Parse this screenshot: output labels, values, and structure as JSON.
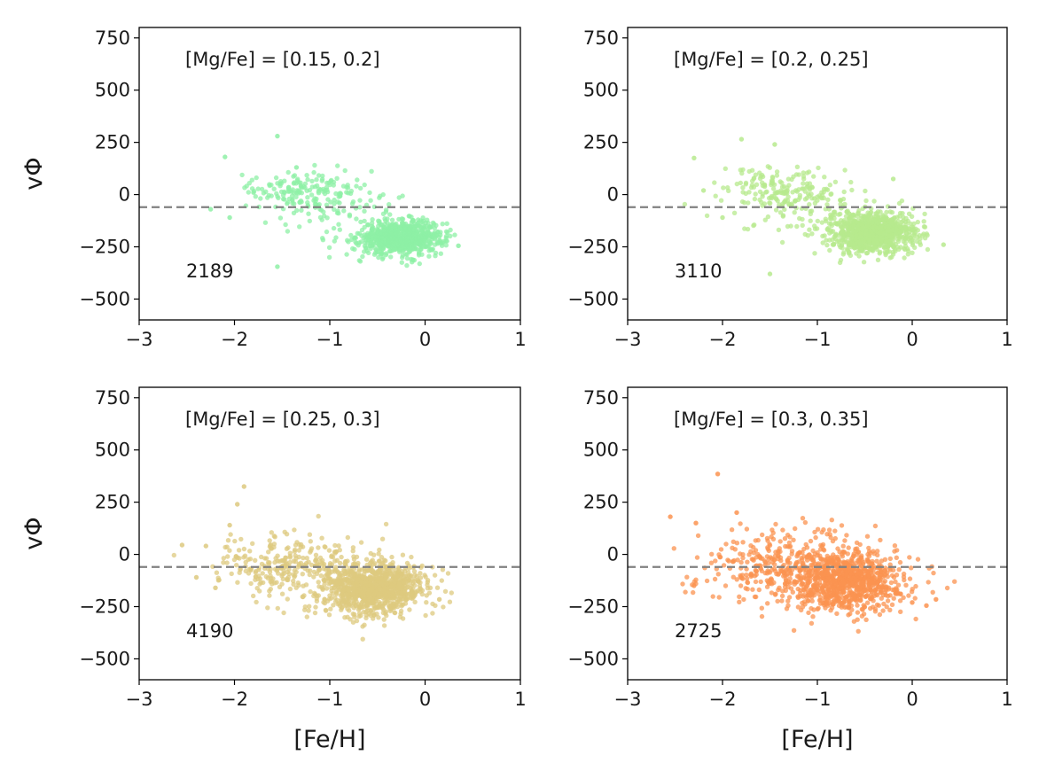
{
  "figure": {
    "xlabel": "[Fe/H]",
    "ylabel": "vΦ",
    "reference_line": {
      "y": -60,
      "style": "dashed",
      "color": "#808080"
    }
  },
  "chart_data": [
    {
      "type": "scatter",
      "title": "[Mg/Fe] = [0.15, 0.2]",
      "count_label": "2189",
      "color": "#8ef0a6",
      "xlim": [
        -3,
        1
      ],
      "ylim": [
        -600,
        800
      ],
      "xticks": [
        -3,
        -2,
        -1,
        0,
        1
      ],
      "xtick_labels": [
        "−3",
        "−2",
        "−1",
        "0",
        "1"
      ],
      "yticks": [
        750,
        500,
        250,
        0,
        -250,
        -500
      ],
      "ytick_labels": [
        "750",
        "500",
        "250",
        "0",
        "−250",
        "−500"
      ],
      "clusters": [
        {
          "cx": -0.25,
          "cy": -205,
          "sx": 0.22,
          "sy": 40,
          "n": 780
        },
        {
          "cx": -1.3,
          "cy": 20,
          "sx": 0.25,
          "sy": 45,
          "n": 130
        },
        {
          "cx": -0.9,
          "cy": -60,
          "sx": 0.35,
          "sy": 80,
          "n": 90
        }
      ],
      "points": [
        [
          -2.1,
          180
        ],
        [
          -1.55,
          280
        ],
        [
          -1.55,
          -345
        ],
        [
          -2.25,
          -70
        ],
        [
          -2.05,
          -110
        ],
        [
          0.35,
          -245
        ],
        [
          -1.8,
          10
        ],
        [
          -1.35,
          130
        ]
      ]
    },
    {
      "type": "scatter",
      "title": "[Mg/Fe] = [0.2, 0.25]",
      "count_label": "3110",
      "color": "#b7ea8e",
      "xlim": [
        -3,
        1
      ],
      "ylim": [
        -600,
        800
      ],
      "xticks": [
        -3,
        -2,
        -1,
        0,
        1
      ],
      "xtick_labels": [
        "−3",
        "−2",
        "−1",
        "0",
        "1"
      ],
      "yticks": [
        750,
        500,
        250,
        0,
        -250,
        -500
      ],
      "ytick_labels": [
        "750",
        "500",
        "250",
        "0",
        "−250",
        "−500"
      ],
      "clusters": [
        {
          "cx": -0.4,
          "cy": -185,
          "sx": 0.22,
          "sy": 48,
          "n": 850
        },
        {
          "cx": -1.45,
          "cy": 10,
          "sx": 0.28,
          "sy": 55,
          "n": 140
        },
        {
          "cx": -1.0,
          "cy": -80,
          "sx": 0.35,
          "sy": 85,
          "n": 110
        }
      ],
      "points": [
        [
          -2.3,
          175
        ],
        [
          -1.8,
          265
        ],
        [
          -1.45,
          240
        ],
        [
          -1.5,
          -380
        ],
        [
          0.33,
          -240
        ],
        [
          -2.0,
          -110
        ],
        [
          -2.2,
          20
        ],
        [
          -0.2,
          75
        ]
      ]
    },
    {
      "type": "scatter",
      "title": "[Mg/Fe] = [0.25, 0.3]",
      "count_label": "4190",
      "color": "#ddc97f",
      "xlim": [
        -3,
        1
      ],
      "ylim": [
        -600,
        800
      ],
      "xticks": [
        -3,
        -2,
        -1,
        0,
        1
      ],
      "xtick_labels": [
        "−3",
        "−2",
        "−1",
        "0",
        "1"
      ],
      "yticks": [
        750,
        500,
        250,
        0,
        -250,
        -500
      ],
      "ytick_labels": [
        "750",
        "500",
        "250",
        "0",
        "−250",
        "−500"
      ],
      "clusters": [
        {
          "cx": -0.55,
          "cy": -165,
          "sx": 0.28,
          "sy": 62,
          "n": 950
        },
        {
          "cx": -1.55,
          "cy": -40,
          "sx": 0.32,
          "sy": 65,
          "n": 180
        },
        {
          "cx": -1.05,
          "cy": -90,
          "sx": 0.4,
          "sy": 95,
          "n": 140
        }
      ],
      "points": [
        [
          -1.9,
          325
        ],
        [
          -1.97,
          240
        ],
        [
          -2.55,
          45
        ],
        [
          -2.3,
          40
        ],
        [
          -2.05,
          140
        ],
        [
          0.15,
          -215
        ],
        [
          -2.4,
          -110
        ],
        [
          -2.2,
          -160
        ]
      ]
    },
    {
      "type": "scatter",
      "title": "[Mg/Fe] = [0.3, 0.35]",
      "count_label": "2725",
      "color": "#fb9350",
      "xlim": [
        -3,
        1
      ],
      "ylim": [
        -600,
        800
      ],
      "xticks": [
        -3,
        -2,
        -1,
        0,
        1
      ],
      "xtick_labels": [
        "−3",
        "−2",
        "−1",
        "0",
        "1"
      ],
      "yticks": [
        750,
        500,
        250,
        0,
        -250,
        -500
      ],
      "ytick_labels": [
        "750",
        "500",
        "250",
        "0",
        "−250",
        "−500"
      ],
      "clusters": [
        {
          "cx": -0.7,
          "cy": -130,
          "sx": 0.3,
          "sy": 75,
          "n": 900
        },
        {
          "cx": -1.6,
          "cy": -40,
          "sx": 0.35,
          "sy": 80,
          "n": 180
        },
        {
          "cx": -1.05,
          "cy": -60,
          "sx": 0.45,
          "sy": 95,
          "n": 140
        }
      ],
      "points": [
        [
          -2.05,
          385
        ],
        [
          -2.55,
          180
        ],
        [
          -2.28,
          150
        ],
        [
          0.25,
          -215
        ],
        [
          0.15,
          -245
        ],
        [
          0.0,
          -230
        ],
        [
          -2.3,
          -150
        ],
        [
          -1.85,
          200
        ]
      ]
    }
  ]
}
